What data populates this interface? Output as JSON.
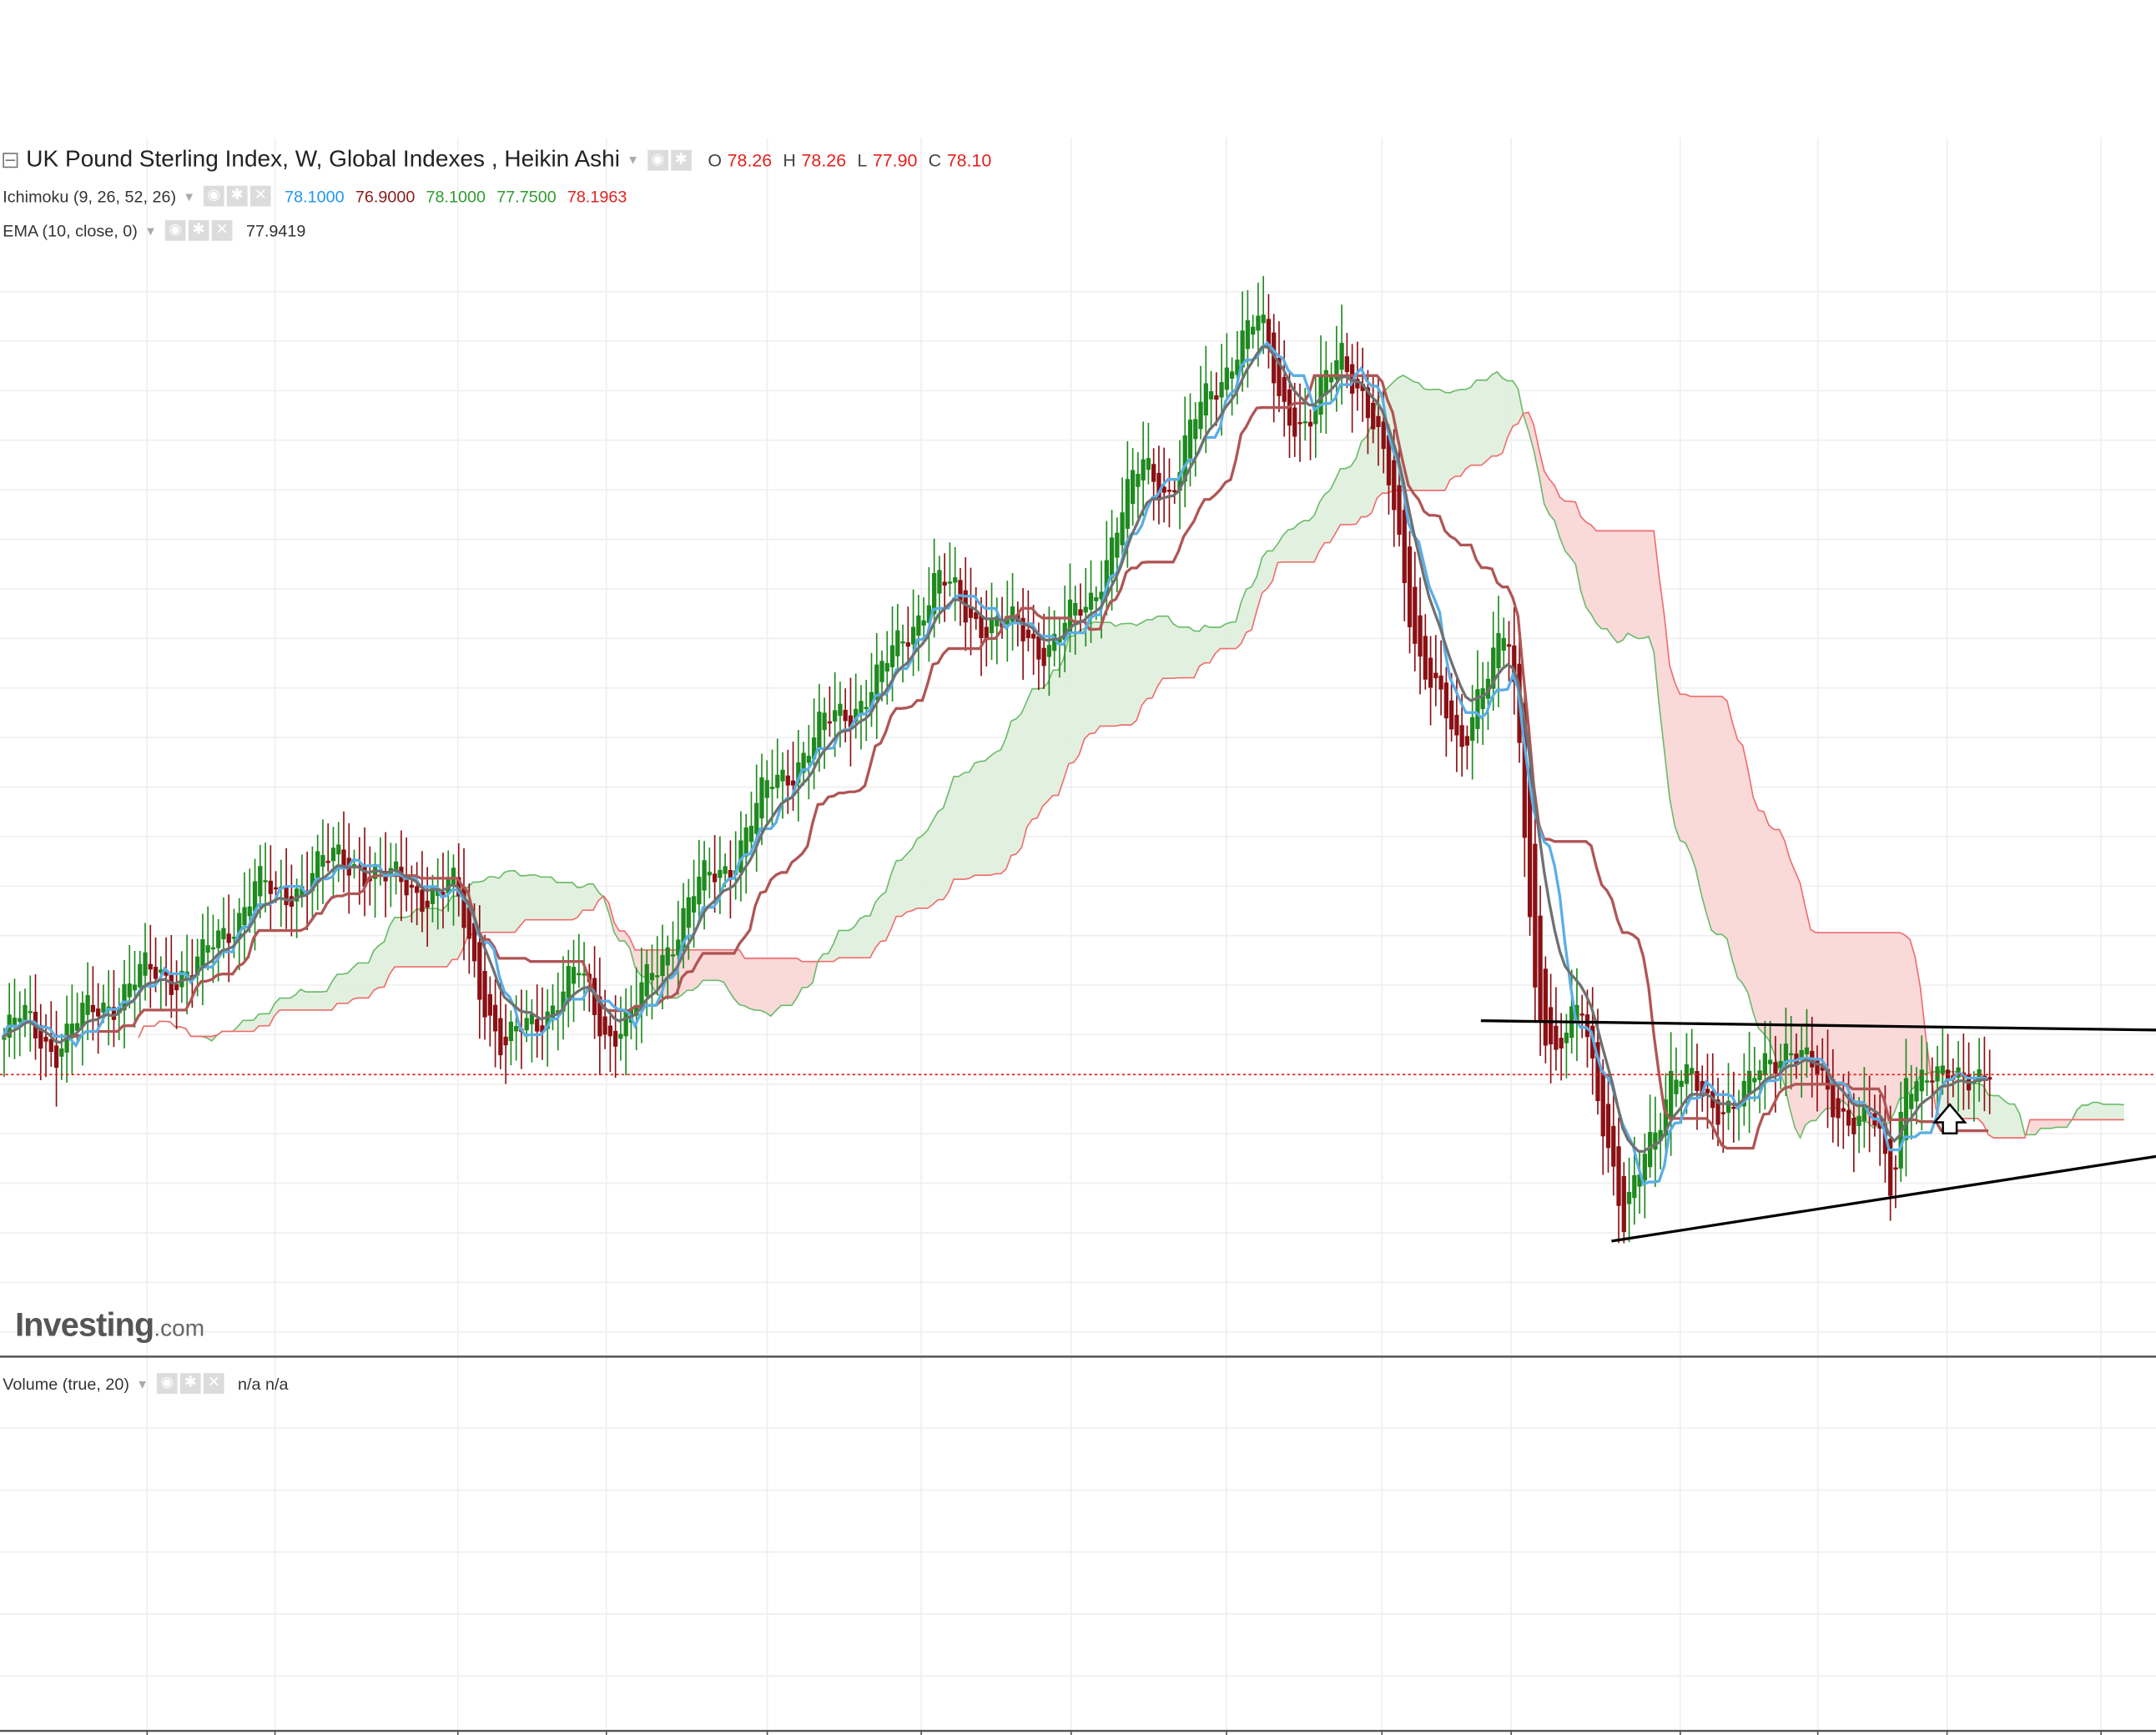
{
  "main_legend": {
    "title": "UK Pound Sterling Index, W, Global Indexes , Heikin Ashi",
    "ohlc": [
      {
        "key": "O",
        "value": "78.26"
      },
      {
        "key": "H",
        "value": "78.26"
      },
      {
        "key": "L",
        "value": "77.90"
      },
      {
        "key": "C",
        "value": "78.10"
      }
    ]
  },
  "ichimoku_legend": {
    "label": "Ichimoku (9, 26, 52, 26)",
    "values": [
      {
        "text": "78.1000",
        "color": "#2196f3"
      },
      {
        "text": "76.9000",
        "color": "#8b1a1a"
      },
      {
        "text": "78.1000",
        "color": "#2e9d2e"
      },
      {
        "text": "77.7500",
        "color": "#2e9d2e"
      },
      {
        "text": "78.1963",
        "color": "#e3221e"
      }
    ]
  },
  "ema_legend": {
    "label": "EMA (10, close, 0)",
    "value": "77.9419"
  },
  "volume_legend": {
    "label": "Volume (true, 20)",
    "value": "n/a n/a"
  },
  "icons": {
    "settings": "gear-icon",
    "visibility": "eye-icon",
    "remove": "close-icon"
  },
  "logo": {
    "brand": "Investing",
    "suffix": ".com"
  },
  "colors": {
    "bull": "#1e8a1e",
    "bear": "#8b1014",
    "tenkan": "#5aaee6",
    "kijun": "#b05555",
    "ema": "#707070",
    "cloud_bull_fill": "#dff0db",
    "cloud_bear_fill": "#f9d5d5",
    "span_a": "#6dbb6d",
    "span_b": "#ef6e6e",
    "last_price": "#e3221e",
    "trendline": "#000000"
  },
  "chart_data": {
    "type": "candlestick",
    "candle_style": "Heikin Ashi",
    "symbol": "UK Pound Sterling Index",
    "interval": "W",
    "exchange": "Global Indexes",
    "last_close": 78.1,
    "price_path": [
      [
        0,
        78.8
      ],
      [
        15,
        79.2
      ],
      [
        40,
        78.7
      ],
      [
        75,
        79.6
      ],
      [
        105,
        80.1
      ],
      [
        145,
        80.3
      ],
      [
        185,
        82.0
      ],
      [
        200,
        81.6
      ],
      [
        225,
        82.3
      ],
      [
        260,
        82.5
      ],
      [
        280,
        82.0
      ],
      [
        330,
        81.8
      ],
      [
        345,
        80.3
      ],
      [
        365,
        78.5
      ],
      [
        380,
        79.0
      ],
      [
        400,
        79.6
      ],
      [
        420,
        80.1
      ],
      [
        440,
        79.0
      ],
      [
        458,
        79.2
      ],
      [
        480,
        80.6
      ],
      [
        505,
        81.8
      ],
      [
        530,
        82.5
      ],
      [
        560,
        84.0
      ],
      [
        600,
        85.2
      ],
      [
        640,
        86.2
      ],
      [
        665,
        87.5
      ],
      [
        680,
        88.2
      ],
      [
        700,
        87.6
      ],
      [
        730,
        87.2
      ],
      [
        760,
        86.9
      ],
      [
        790,
        87.6
      ],
      [
        810,
        89.3
      ],
      [
        830,
        90.5
      ],
      [
        850,
        90.1
      ],
      [
        870,
        91.5
      ],
      [
        900,
        93.1
      ],
      [
        915,
        93.4
      ],
      [
        930,
        92.0
      ],
      [
        950,
        91.2
      ],
      [
        975,
        93.0
      ],
      [
        990,
        92.0
      ],
      [
        1010,
        90.0
      ],
      [
        1030,
        86.8
      ],
      [
        1060,
        84.6
      ],
      [
        1075,
        86.2
      ],
      [
        1095,
        87.0
      ],
      [
        1105,
        84.5
      ],
      [
        1115,
        80.0
      ],
      [
        1130,
        78.3
      ],
      [
        1150,
        79.5
      ],
      [
        1165,
        77.3
      ],
      [
        1180,
        74.8
      ],
      [
        1195,
        76.5
      ],
      [
        1215,
        78.2
      ],
      [
        1240,
        77.5
      ],
      [
        1270,
        77.7
      ],
      [
        1300,
        78.9
      ],
      [
        1330,
        77.5
      ],
      [
        1360,
        77.2
      ],
      [
        1375,
        75.6
      ],
      [
        1385,
        78.3
      ],
      [
        1410,
        77.8
      ],
      [
        1430,
        78.3
      ],
      [
        1445,
        78.1
      ]
    ],
    "annotations": [
      {
        "type": "trendline",
        "label": "resistance",
        "from": [
          1077,
          79.2
        ],
        "to": [
          1568,
          79.01
        ]
      },
      {
        "type": "trendline",
        "label": "support",
        "from": [
          1172,
          74.7
        ],
        "to": [
          1568,
          76.43
        ]
      },
      {
        "type": "hline",
        "label": "last price",
        "value": 78.1
      },
      {
        "type": "arrow",
        "direction": "up",
        "at": [
          1418,
          76.9
        ]
      }
    ],
    "indicators": [
      "Ichimoku (9, 26, 52, 26)",
      "EMA (10, close, 0)",
      "Volume (true, 20)"
    ],
    "grid": true,
    "watermark": "Investing.com"
  }
}
